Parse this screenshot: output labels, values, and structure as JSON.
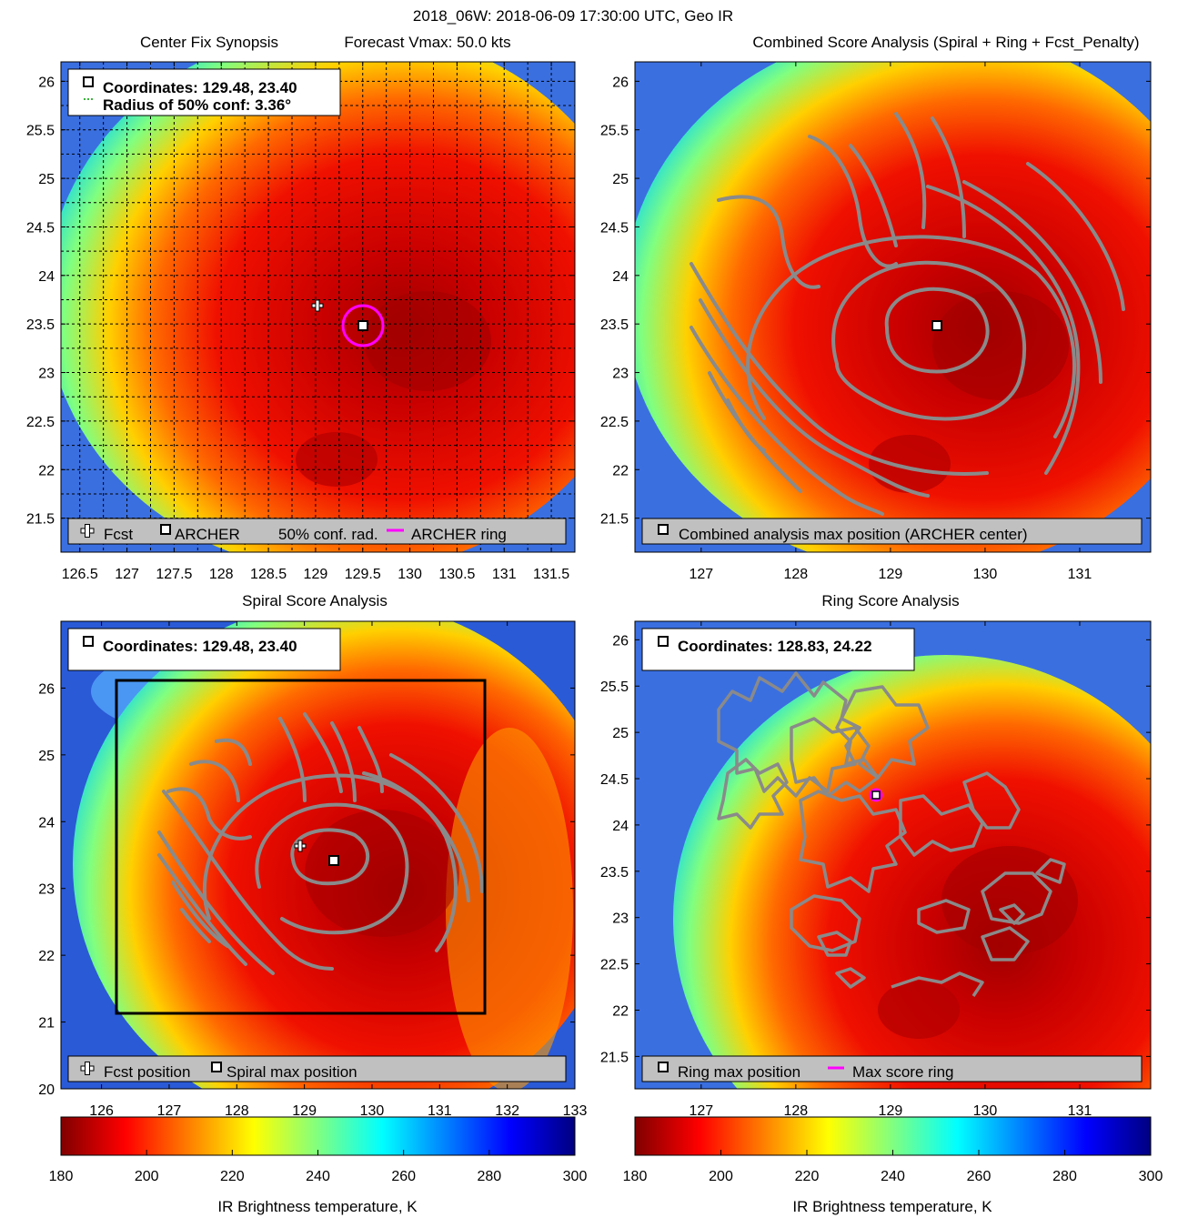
{
  "figure_title": "2018_06W: 2018-06-09 17:30:00 UTC, Geo IR",
  "chart_data": [
    {
      "type": "heatmap",
      "panel": "synopsis",
      "title_left": "Center Fix Synopsis",
      "title_right": "Forecast Vmax: 50.0 kts",
      "xlim": [
        126.3,
        131.75
      ],
      "ylim": [
        21.15,
        26.2
      ],
      "xticks": [
        "126.5",
        "127",
        "127.5",
        "128",
        "128.5",
        "129",
        "129.5",
        "130",
        "130.5",
        "131",
        "131.5"
      ],
      "yticks": [
        "21.5",
        "22",
        "22.5",
        "23",
        "23.5",
        "24",
        "24.5",
        "25",
        "25.5",
        "26"
      ],
      "grid": true,
      "info_box": [
        "Coordinates: 129.48, 23.40",
        "Radius of 50% conf: 3.36°"
      ],
      "legend": [
        "Fcst",
        "ARCHER",
        "50% conf. rad.",
        "ARCHER ring"
      ],
      "fcst_position": [
        129.0,
        23.62
      ],
      "archer_center": [
        129.48,
        23.4
      ]
    },
    {
      "type": "heatmap",
      "panel": "combined",
      "title": "Combined Score Analysis (Spiral + Ring + Fcst_Penalty)",
      "xlim": [
        126.3,
        131.75
      ],
      "ylim": [
        21.15,
        26.2
      ],
      "xticks": [
        "127",
        "128",
        "129",
        "130",
        "131"
      ],
      "yticks": [
        "21.5",
        "22",
        "22.5",
        "23",
        "23.5",
        "24",
        "24.5",
        "25",
        "25.5",
        "26"
      ],
      "legend": [
        "Combined analysis max position (ARCHER center)"
      ],
      "max_position": [
        129.48,
        23.4
      ]
    },
    {
      "type": "heatmap",
      "panel": "spiral",
      "title": "Spiral Score Analysis",
      "xlim": [
        125.4,
        133.0
      ],
      "ylim": [
        20.0,
        27.0
      ],
      "xticks": [
        "126",
        "127",
        "128",
        "129",
        "130",
        "131",
        "132",
        "133"
      ],
      "yticks": [
        "20",
        "21",
        "22",
        "23",
        "24",
        "25",
        "26"
      ],
      "info_box": [
        "Coordinates: 129.48, 23.40"
      ],
      "legend": [
        "Fcst position",
        "Spiral max position"
      ],
      "fcst_position": [
        129.0,
        23.62
      ],
      "spiral_max": [
        129.48,
        23.4
      ]
    },
    {
      "type": "heatmap",
      "panel": "ring",
      "title": "Ring Score Analysis",
      "xlim": [
        126.3,
        131.75
      ],
      "ylim": [
        21.15,
        26.2
      ],
      "xticks": [
        "127",
        "128",
        "129",
        "130",
        "131"
      ],
      "yticks": [
        "21.5",
        "22",
        "22.5",
        "23",
        "23.5",
        "24",
        "24.5",
        "25",
        "25.5",
        "26"
      ],
      "info_box": [
        "Coordinates: 128.83, 24.22"
      ],
      "legend": [
        "Ring max position",
        "Max score ring"
      ],
      "ring_max": [
        128.83,
        24.22
      ]
    },
    {
      "type": "colorbar",
      "range": [
        180,
        300
      ],
      "ticks": [
        "180",
        "200",
        "220",
        "240",
        "260",
        "280",
        "300"
      ],
      "label": "IR Brightness temperature, K"
    }
  ],
  "colors": {
    "contour": "#8a8a8a",
    "ring": "#ff00ff",
    "legend_bg": "#c0c0c0",
    "colormap": [
      "#800000",
      "#ff0000",
      "#ff8000",
      "#ffff00",
      "#80ff80",
      "#00ffff",
      "#0080ff",
      "#0000ff",
      "#000080"
    ]
  },
  "icons": [
    "fcst-cross-icon",
    "archer-square-icon",
    "conf-radius-dashed-icon",
    "ring-line-icon"
  ]
}
